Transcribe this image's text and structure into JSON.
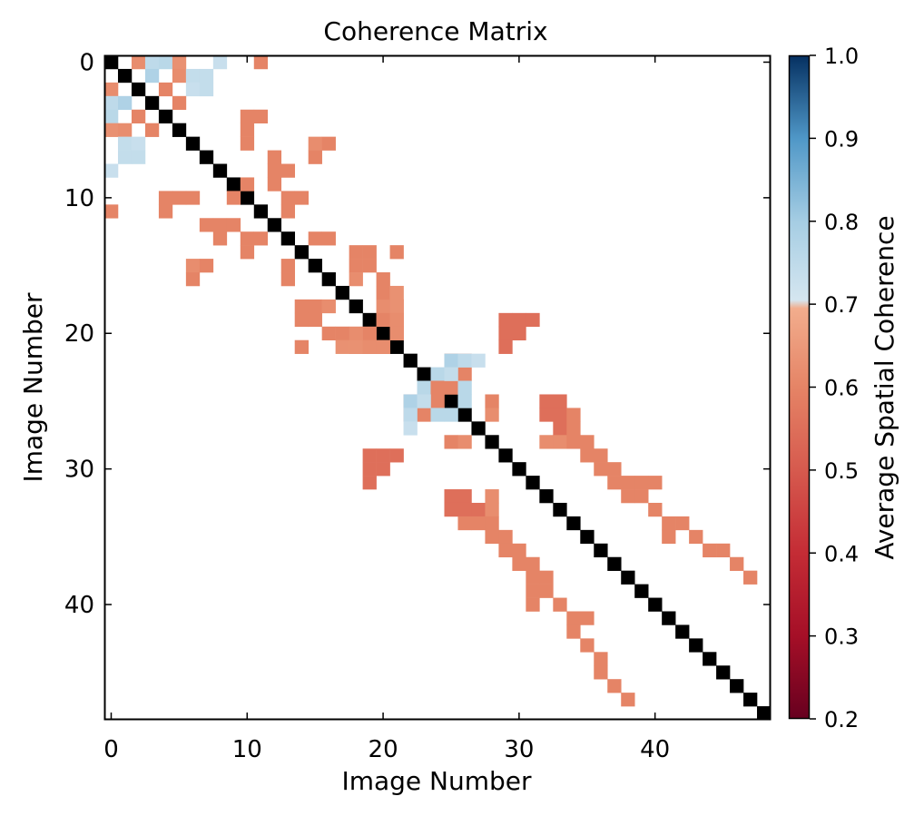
{
  "chart_data": {
    "type": "heatmap",
    "title": "Coherence Matrix",
    "xlabel": "Image Number",
    "ylabel": "Image Number",
    "n": 49,
    "x_ticks": [
      0,
      10,
      20,
      30,
      40
    ],
    "y_ticks": [
      0,
      10,
      20,
      30,
      40
    ],
    "diagonal_color": "#000000",
    "colorbar": {
      "label": "Average Spatial Coherence",
      "min": 0.2,
      "max": 1.0,
      "ticks": [
        1.0,
        0.9,
        0.8,
        0.7,
        0.6,
        0.5,
        0.4,
        0.3,
        0.2
      ],
      "tick_labels": [
        "1.0",
        "0.9",
        "0.8",
        "0.7",
        "0.6",
        "0.5",
        "0.4",
        "0.3",
        "0.2"
      ],
      "threshold": 0.7,
      "stops": [
        {
          "v": 0.2,
          "color": "#67001f"
        },
        {
          "v": 0.3,
          "color": "#a50f27"
        },
        {
          "v": 0.4,
          "color": "#c42c35"
        },
        {
          "v": 0.5,
          "color": "#d65a4e"
        },
        {
          "v": 0.6,
          "color": "#e58466"
        },
        {
          "v": 0.695,
          "color": "#f2ad8d"
        },
        {
          "v": 0.705,
          "color": "#d5e6f0"
        },
        {
          "v": 0.8,
          "color": "#a5cde3"
        },
        {
          "v": 0.9,
          "color": "#4f97c7"
        },
        {
          "v": 1.0,
          "color": "#053061"
        }
      ]
    },
    "cells": [
      [
        0,
        2,
        0.62
      ],
      [
        0,
        3,
        0.75
      ],
      [
        0,
        4,
        0.76
      ],
      [
        0,
        5,
        0.63
      ],
      [
        0,
        8,
        0.73
      ],
      [
        0,
        11,
        0.6
      ],
      [
        1,
        3,
        0.78
      ],
      [
        1,
        5,
        0.62
      ],
      [
        1,
        6,
        0.74
      ],
      [
        1,
        7,
        0.74
      ],
      [
        2,
        6,
        0.73
      ],
      [
        2,
        7,
        0.74
      ],
      [
        3,
        5,
        0.6
      ],
      [
        4,
        2,
        0.6
      ],
      [
        4,
        10,
        0.6
      ],
      [
        4,
        11,
        0.6
      ],
      [
        5,
        10,
        0.6
      ],
      [
        6,
        10,
        0.6
      ],
      [
        6,
        15,
        0.62
      ],
      [
        6,
        16,
        0.6
      ],
      [
        7,
        12,
        0.6
      ],
      [
        7,
        15,
        0.6
      ],
      [
        8,
        12,
        0.6
      ],
      [
        8,
        13,
        0.6
      ],
      [
        9,
        10,
        0.6
      ],
      [
        9,
        12,
        0.6
      ],
      [
        10,
        13,
        0.6
      ],
      [
        10,
        14,
        0.6
      ],
      [
        11,
        13,
        0.6
      ],
      [
        13,
        15,
        0.6
      ],
      [
        13,
        16,
        0.6
      ],
      [
        14,
        18,
        0.6
      ],
      [
        14,
        19,
        0.6
      ],
      [
        14,
        21,
        0.6
      ],
      [
        15,
        18,
        0.6
      ],
      [
        15,
        19,
        0.6
      ],
      [
        16,
        18,
        0.62
      ],
      [
        16,
        20,
        0.6
      ],
      [
        18,
        20,
        0.62
      ],
      [
        18,
        21,
        0.62
      ],
      [
        19,
        20,
        0.6
      ],
      [
        19,
        21,
        0.6
      ],
      [
        20,
        17,
        0.6
      ],
      [
        20,
        21,
        0.6
      ],
      [
        21,
        17,
        0.63
      ],
      [
        21,
        18,
        0.63
      ],
      [
        21,
        19,
        0.62
      ],
      [
        21,
        20,
        0.62
      ],
      [
        22,
        25,
        0.6
      ],
      [
        22,
        26,
        0.6
      ],
      [
        23,
        24,
        0.76
      ],
      [
        23,
        26,
        0.6
      ],
      [
        24,
        24,
        0.6
      ],
      [
        24,
        25,
        0.6
      ],
      [
        25,
        22,
        0.78
      ],
      [
        25,
        23,
        0.74
      ],
      [
        26,
        22,
        0.75
      ],
      [
        26,
        24,
        0.76
      ],
      [
        26,
        25,
        0.76
      ],
      [
        27,
        22,
        0.73
      ],
      [
        28,
        25,
        0.6
      ],
      [
        28,
        26,
        0.62
      ],
      [
        29,
        19,
        0.55
      ],
      [
        29,
        20,
        0.55
      ],
      [
        29,
        21,
        0.55
      ],
      [
        30,
        19,
        0.55
      ],
      [
        30,
        20,
        0.55
      ],
      [
        31,
        19,
        0.55
      ],
      [
        32,
        25,
        0.55
      ],
      [
        32,
        26,
        0.55
      ],
      [
        32,
        28,
        0.62
      ],
      [
        33,
        25,
        0.55
      ],
      [
        33,
        26,
        0.55
      ],
      [
        33,
        27,
        0.55
      ],
      [
        33,
        28,
        0.62
      ],
      [
        34,
        26,
        0.6
      ],
      [
        34,
        27,
        0.6
      ],
      [
        34,
        28,
        0.6
      ],
      [
        35,
        28,
        0.6
      ],
      [
        35,
        29,
        0.6
      ],
      [
        36,
        29,
        0.6
      ],
      [
        36,
        30,
        0.6
      ],
      [
        37,
        30,
        0.6
      ],
      [
        37,
        31,
        0.6
      ],
      [
        38,
        31,
        0.6
      ],
      [
        38,
        32,
        0.6
      ],
      [
        39,
        31,
        0.6
      ],
      [
        39,
        32,
        0.6
      ],
      [
        40,
        31,
        0.6
      ],
      [
        40,
        33,
        0.6
      ],
      [
        41,
        34,
        0.6
      ],
      [
        41,
        35,
        0.6
      ],
      [
        42,
        34,
        0.6
      ],
      [
        43,
        35,
        0.6
      ],
      [
        44,
        36,
        0.6
      ],
      [
        45,
        36,
        0.6
      ],
      [
        46,
        37,
        0.6
      ],
      [
        47,
        38,
        0.6
      ]
    ]
  }
}
